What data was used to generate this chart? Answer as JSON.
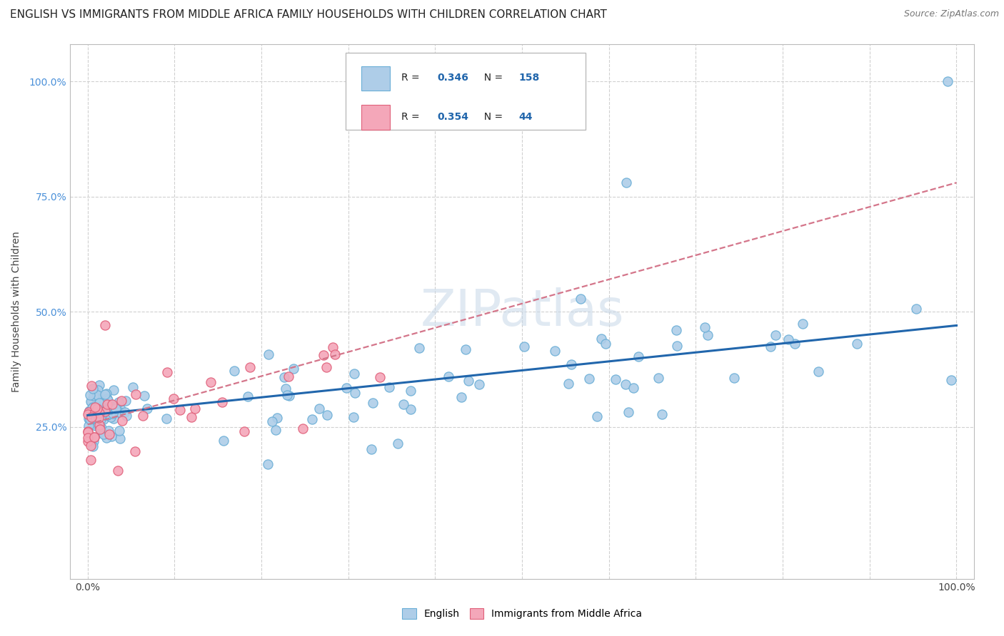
{
  "title": "ENGLISH VS IMMIGRANTS FROM MIDDLE AFRICA FAMILY HOUSEHOLDS WITH CHILDREN CORRELATION CHART",
  "source": "Source: ZipAtlas.com",
  "ylabel": "Family Households with Children",
  "xlim": [
    -0.02,
    1.02
  ],
  "ylim": [
    -0.08,
    1.08
  ],
  "xtick_positions": [
    0.0,
    1.0
  ],
  "xtick_labels": [
    "0.0%",
    "100.0%"
  ],
  "ytick_positions": [
    0.25,
    0.5,
    0.75,
    1.0
  ],
  "ytick_labels": [
    "25.0%",
    "50.0%",
    "75.0%",
    "100.0%"
  ],
  "english_color": "#aecde8",
  "english_edge_color": "#6aaed6",
  "immigrant_color": "#f4a7b9",
  "immigrant_edge_color": "#e0607a",
  "trend_english_color": "#2166ac",
  "trend_immigrant_color": "#d4758a",
  "R_english": 0.346,
  "N_english": 158,
  "R_immigrant": 0.354,
  "N_immigrant": 44,
  "legend_english": "English",
  "legend_immigrant": "Immigrants from Middle Africa",
  "watermark": "ZIPatlas",
  "background_color": "#ffffff",
  "grid_color": "#d0d0d0",
  "title_fontsize": 11,
  "axis_label_fontsize": 10,
  "english_trend_x0": 0.0,
  "english_trend_y0": 0.275,
  "english_trend_x1": 1.0,
  "english_trend_y1": 0.47,
  "immigrant_trend_x0": 0.0,
  "immigrant_trend_y0": 0.255,
  "immigrant_trend_x1": 1.0,
  "immigrant_trend_y1": 0.78
}
